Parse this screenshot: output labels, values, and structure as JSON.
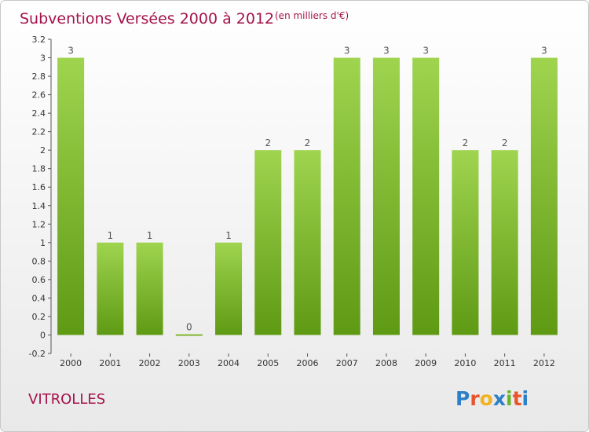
{
  "chart_data": {
    "type": "bar",
    "title": "Subventions Versées 2000 à 2012",
    "unit": "(en milliers d'€)",
    "categories": [
      "2000",
      "2001",
      "2002",
      "2003",
      "2004",
      "2005",
      "2006",
      "2007",
      "2008",
      "2009",
      "2010",
      "2011",
      "2012"
    ],
    "values": [
      3,
      1,
      1,
      0,
      1,
      2,
      2,
      3,
      3,
      3,
      2,
      2,
      3
    ],
    "ylim": [
      -0.2,
      3.2
    ],
    "yticks": [
      "-0.2",
      "0",
      "0.2",
      "0.4",
      "0.6",
      "0.8",
      "1",
      "1.2",
      "1.4",
      "1.6",
      "1.8",
      "2",
      "2.2",
      "2.4",
      "2.6",
      "2.8",
      "3",
      "3.2"
    ],
    "grid": false,
    "legend": "none",
    "bar_color_top": "#9fd44f",
    "bar_color_bottom": "#5f9a14"
  },
  "place": "VITROLLES",
  "logo": {
    "text": "Proxiti",
    "letters": [
      "P",
      "r",
      "o",
      "x",
      "i",
      "t",
      "i"
    ],
    "colors": [
      "#2d7fc8",
      "#e8542c",
      "#f2b21e",
      "#2d7fc8",
      "#6ab42d",
      "#e8542c",
      "#2d7fc8"
    ]
  },
  "colors": {
    "title": "#a4124a",
    "frame": "#c8c8c8"
  }
}
